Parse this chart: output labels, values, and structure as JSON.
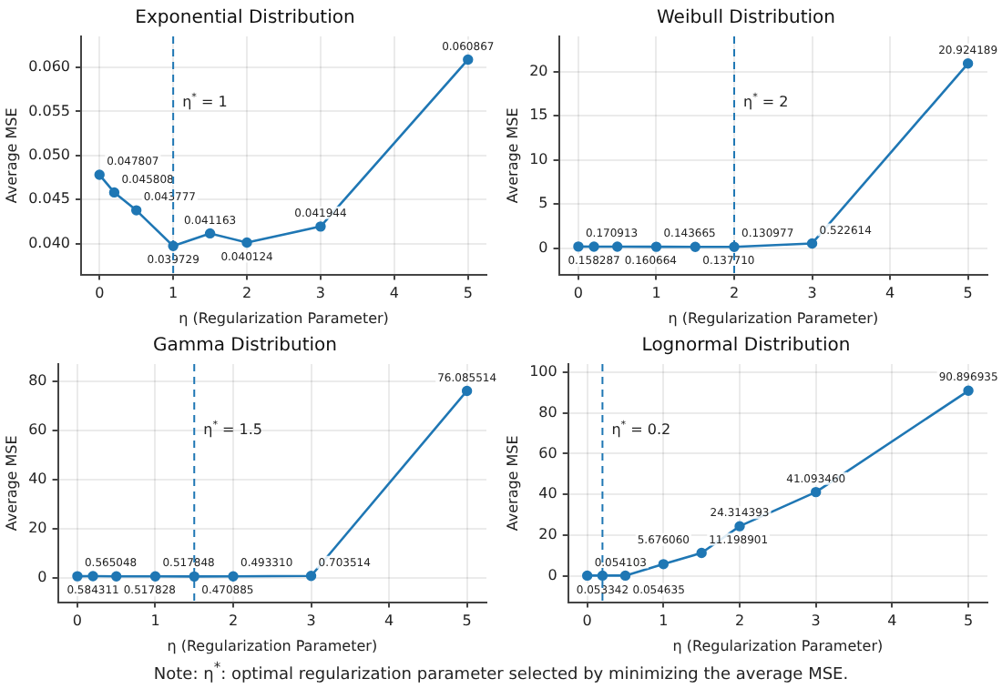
{
  "chart_data": [
    {
      "type": "line",
      "title": "Exponential Distribution",
      "xlabel": "η (Regularization Parameter)",
      "ylabel": "Average MSE",
      "x": [
        0,
        0.2,
        0.5,
        1,
        1.5,
        2,
        3,
        5
      ],
      "series": [
        {
          "color": "#1f77b4",
          "values": [
            0.047807,
            0.045808,
            0.043777,
            0.039729,
            0.041163,
            0.040124,
            0.041944,
            0.060867
          ],
          "value_labels": [
            "0.047807",
            "0.045808",
            "0.043777",
            "0.039729",
            "0.041163",
            "0.040124",
            "0.041944",
            "0.060867"
          ]
        }
      ],
      "xlim": [
        -0.25,
        5.25
      ],
      "xticks": [
        0,
        1,
        2,
        3,
        4,
        5
      ],
      "ylim": [
        0.0365,
        0.0635
      ],
      "yticks": [
        {
          "value": 0.04,
          "label": "0.040"
        },
        {
          "value": 0.045,
          "label": "0.045"
        },
        {
          "value": 0.05,
          "label": "0.050"
        },
        {
          "value": 0.055,
          "label": "0.055"
        },
        {
          "value": 0.06,
          "label": "0.060"
        }
      ],
      "ref_lines": [
        {
          "axis": "x",
          "value": 1,
          "label": "η$^{*}$ = 1",
          "line_style": "dashed"
        }
      ],
      "grid": true,
      "marker": "circle",
      "line_style": "solid"
    },
    {
      "type": "line",
      "title": "Weibull Distribution",
      "xlabel": "η (Regularization Parameter)",
      "ylabel": "Average MSE",
      "x": [
        0,
        0.2,
        0.5,
        1,
        1.5,
        2,
        3,
        5
      ],
      "series": [
        {
          "color": "#1f77b4",
          "values": [
            0.170913,
            0.158287,
            0.160664,
            0.143665,
            0.13771,
            0.130977,
            0.522614,
            20.924189
          ],
          "value_labels": [
            "0.170913",
            "0.158287",
            "0.160664",
            "0.143665",
            "0.137710",
            "0.130977",
            "0.522614",
            "20.924189"
          ]
        }
      ],
      "xlim": [
        -0.25,
        5.25
      ],
      "xticks": [
        0,
        1,
        2,
        3,
        4,
        5
      ],
      "ylim": [
        -3,
        24
      ],
      "yticks": [
        0,
        5,
        10,
        15,
        20
      ],
      "ref_lines": [
        {
          "axis": "x",
          "value": 2,
          "label": "η$^{*}$ = 2",
          "line_style": "dashed"
        }
      ],
      "grid": true,
      "marker": "circle",
      "line_style": "solid"
    },
    {
      "type": "line",
      "title": "Gamma Distribution",
      "xlabel": "η (Regularization Parameter)",
      "ylabel": "Average MSE",
      "x": [
        0,
        0.2,
        0.5,
        1,
        1.5,
        2,
        3,
        5
      ],
      "series": [
        {
          "color": "#1f77b4",
          "values": [
            0.565048,
            0.584311,
            0.517828,
            0.517848,
            0.470885,
            0.49331,
            0.703514,
            76.085514
          ],
          "value_labels": [
            "0.565048",
            "0.584311",
            "0.517828",
            "0.517848",
            "0.470885",
            "0.493310",
            "0.703514",
            "76.085514"
          ]
        }
      ],
      "xlim": [
        -0.25,
        5.25
      ],
      "xticks": [
        0,
        1,
        2,
        3,
        4,
        5
      ],
      "ylim": [
        -10,
        87
      ],
      "yticks": [
        0,
        20,
        40,
        60,
        80
      ],
      "ref_lines": [
        {
          "axis": "x",
          "value": 1.5,
          "label": "η$^{*}$ = 1.5",
          "line_style": "dashed"
        }
      ],
      "grid": true,
      "marker": "circle",
      "line_style": "solid"
    },
    {
      "type": "line",
      "title": "Lognormal Distribution",
      "xlabel": "η (Regularization Parameter)",
      "ylabel": "Average MSE",
      "x": [
        0,
        0.2,
        0.5,
        1,
        1.5,
        2,
        3,
        5
      ],
      "series": [
        {
          "color": "#1f77b4",
          "values": [
            0.054103,
            0.053342,
            0.054635,
            5.67606,
            11.198901,
            24.314393,
            41.09346,
            90.896935
          ],
          "value_labels": [
            "0.054103",
            "0.053342",
            "0.054635",
            "5.676060",
            "11.198901",
            "24.314393",
            "41.093460",
            "90.896935"
          ]
        }
      ],
      "xlim": [
        -0.25,
        5.25
      ],
      "xticks": [
        0,
        1,
        2,
        3,
        4,
        5
      ],
      "ylim": [
        -13,
        104
      ],
      "yticks": [
        0,
        20,
        40,
        60,
        80,
        100
      ],
      "ref_lines": [
        {
          "axis": "x",
          "value": 0.2,
          "label": "η$^{*}$ = 0.2",
          "line_style": "dashed"
        }
      ],
      "grid": true,
      "marker": "circle",
      "line_style": "solid",
      "annotations": [
        "Note: η$^{*}$: optimal regularization parameter selected by minimizing the average MSE."
      ]
    }
  ]
}
